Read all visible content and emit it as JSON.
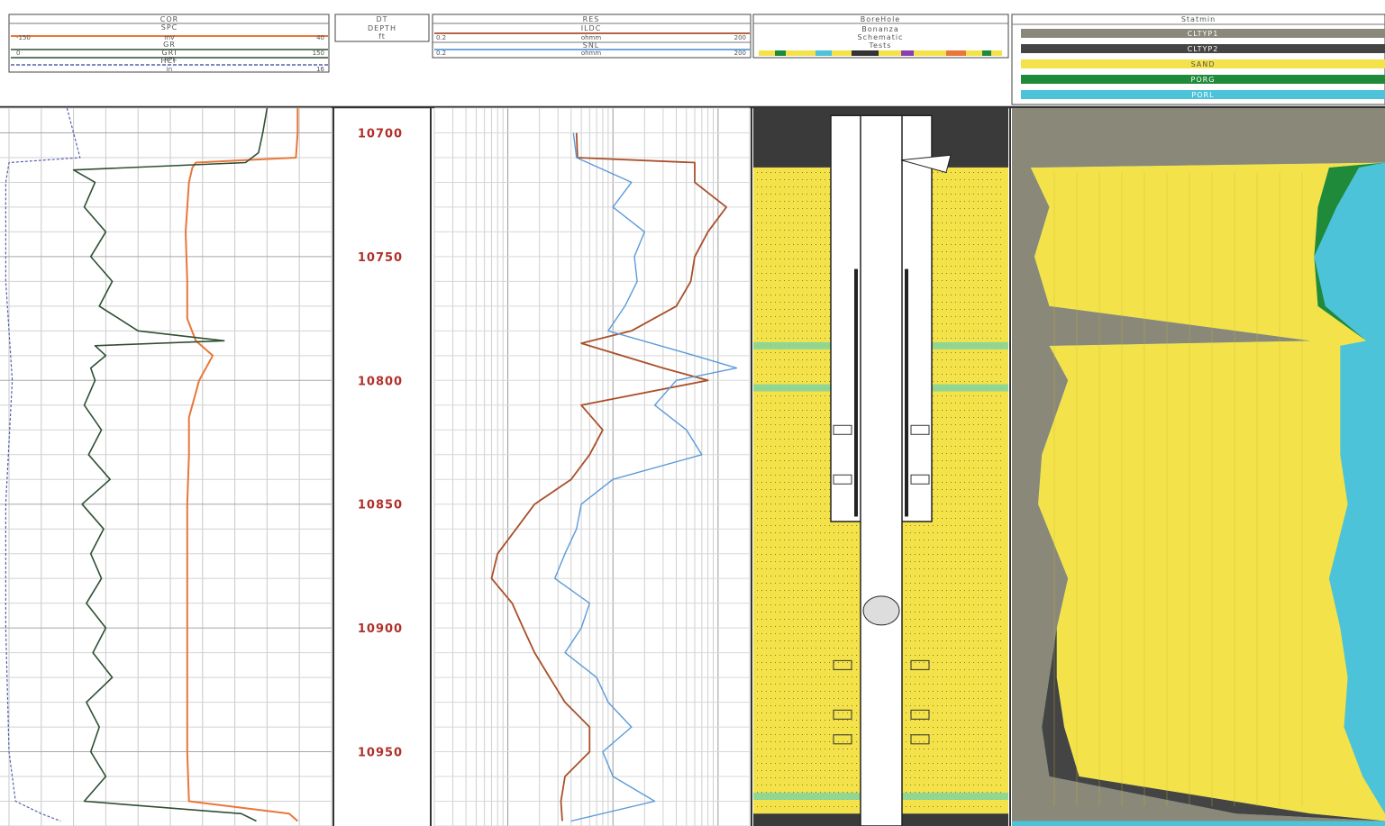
{
  "tracks": [
    {
      "title": "COR",
      "curves": [
        {
          "mnemonic": "SPC",
          "unit": "mV",
          "left": "-150",
          "right": "40",
          "color": "#e8773a"
        },
        {
          "mnemonic": "GR",
          "unit": "",
          "left": "",
          "right": "",
          "color": "#2f4f33"
        },
        {
          "mnemonic": "GRI",
          "unit": "API",
          "left": "0",
          "right": "150",
          "color": "#2f4f33"
        },
        {
          "mnemonic": "HCF",
          "unit": "in",
          "left": "",
          "right": "16",
          "color": "#5560b0"
        }
      ]
    },
    {
      "title": "DT",
      "subtitle": "DEPTH",
      "unit": "ft"
    },
    {
      "title": "RES",
      "curves": [
        {
          "mnemonic": "ILDC",
          "unit": "ohmm",
          "left": "0.2",
          "right": "200",
          "color": "#a9502a"
        },
        {
          "mnemonic": "SNL",
          "unit": "ohmm",
          "left": "0.2",
          "right": "200",
          "color": "#5b9bd8"
        }
      ]
    },
    {
      "title": "BoreHole",
      "lines": [
        "Bonanza",
        "Schematic",
        "Tests"
      ]
    },
    {
      "title": "Statmin",
      "lithology": [
        {
          "code": "CLTYP1",
          "color": "#8a8878"
        },
        {
          "code": "CLTYP2",
          "color": "#444444"
        },
        {
          "code": "SAND",
          "color": "#f4e24a"
        },
        {
          "code": "PORG",
          "color": "#1f8a3a"
        },
        {
          "code": "PORL",
          "color": "#4cc3d9"
        }
      ]
    }
  ],
  "chart_data": {
    "type": "line",
    "title": "",
    "ylabel": "DEPTH",
    "yunit": "ft",
    "ylim": [
      10690,
      10980
    ],
    "depth_ticks": [
      10700,
      10750,
      10800,
      10850,
      10900,
      10950
    ],
    "series": [
      {
        "name": "SPC",
        "xlim": [
          -150,
          40
        ],
        "depth": [
          10690,
          10700,
          10710,
          10712,
          10714,
          10720,
          10740,
          10760,
          10775,
          10784,
          10790,
          10800,
          10815,
          10830,
          10850,
          10900,
          10950,
          10970,
          10975,
          10978
        ],
        "values": [
          20,
          20,
          19,
          -40,
          -42,
          -44,
          -46,
          -45,
          -45,
          -40,
          -30,
          -38,
          -44,
          -44,
          -45,
          -45,
          -45,
          -44,
          15,
          20
        ]
      },
      {
        "name": "GRI",
        "xlim": [
          0,
          150
        ],
        "depth": [
          10690,
          10700,
          10708,
          10712,
          10715,
          10720,
          10730,
          10740,
          10750,
          10760,
          10770,
          10780,
          10784,
          10786,
          10790,
          10795,
          10800,
          10810,
          10820,
          10830,
          10840,
          10850,
          10860,
          10870,
          10880,
          10890,
          10900,
          10910,
          10920,
          10930,
          10940,
          10950,
          10960,
          10970,
          10975,
          10978
        ],
        "values": [
          120,
          118,
          116,
          110,
          30,
          40,
          35,
          45,
          38,
          48,
          42,
          60,
          100,
          40,
          45,
          38,
          40,
          35,
          43,
          37,
          47,
          34,
          44,
          38,
          43,
          36,
          45,
          39,
          48,
          36,
          42,
          38,
          45,
          35,
          108,
          115
        ]
      },
      {
        "name": "HCF",
        "xlim": [
          6,
          16
        ],
        "depth": [
          10690,
          10700,
          10710,
          10712,
          10720,
          10760,
          10800,
          10850,
          10900,
          10950,
          10970,
          10975,
          10978
        ],
        "values": [
          7.8,
          8.0,
          8.2,
          6.0,
          5.9,
          5.9,
          6.1,
          5.9,
          5.9,
          6.0,
          6.2,
          7.0,
          7.6
        ]
      },
      {
        "name": "ILDC",
        "xlim": [
          0.2,
          200
        ],
        "scale": "log",
        "depth": [
          10700,
          10710,
          10712,
          10720,
          10730,
          10740,
          10750,
          10760,
          10770,
          10780,
          10785,
          10795,
          10800,
          10810,
          10820,
          10830,
          10840,
          10850,
          10860,
          10870,
          10880,
          10890,
          10900,
          10910,
          10920,
          10930,
          10940,
          10950,
          10960,
          10970,
          10978
        ],
        "values": [
          4.5,
          4.6,
          60,
          60,
          120,
          80,
          60,
          55,
          40,
          15,
          5,
          30,
          80,
          5,
          8,
          6,
          4,
          1.8,
          1.2,
          0.8,
          0.7,
          1.1,
          1.4,
          1.8,
          2.5,
          3.5,
          6,
          6,
          3.5,
          3.2,
          3.3
        ]
      },
      {
        "name": "SNL",
        "xlim": [
          0.2,
          200
        ],
        "scale": "log",
        "depth": [
          10700,
          10710,
          10720,
          10730,
          10740,
          10750,
          10760,
          10770,
          10780,
          10790,
          10795,
          10800,
          10810,
          10820,
          10830,
          10840,
          10850,
          10860,
          10870,
          10880,
          10890,
          10900,
          10910,
          10920,
          10930,
          10940,
          10950,
          10960,
          10970,
          10978
        ],
        "values": [
          4.2,
          4.5,
          15,
          10,
          20,
          16,
          17,
          13,
          9,
          60,
          150,
          40,
          25,
          50,
          70,
          10,
          5,
          4.5,
          3.5,
          2.8,
          6,
          5,
          3.5,
          7,
          9,
          15,
          8,
          10,
          25,
          4
        ]
      }
    ],
    "statmin_fractions": {
      "depth": [
        10690,
        10712,
        10714,
        10730,
        10750,
        10770,
        10784,
        10786,
        10800,
        10830,
        10850,
        10880,
        10900,
        10920,
        10940,
        10960,
        10975,
        10978
      ],
      "CLTYP1": [
        1.0,
        1.0,
        0.05,
        0.1,
        0.06,
        0.1,
        0.8,
        0.1,
        0.15,
        0.08,
        0.07,
        0.15,
        0.12,
        0.1,
        0.08,
        0.1,
        0.6,
        1.0
      ],
      "CLTYP2": [
        0.0,
        0.0,
        0.0,
        0.0,
        0.0,
        0.0,
        0.0,
        0.0,
        0.0,
        0.0,
        0.0,
        0.0,
        0.0,
        0.02,
        0.06,
        0.08,
        0.2,
        0.0
      ],
      "SAND": [
        0.0,
        0.0,
        0.8,
        0.72,
        0.75,
        0.72,
        0.15,
        0.78,
        0.73,
        0.8,
        0.83,
        0.7,
        0.76,
        0.78,
        0.75,
        0.76,
        0.2,
        0.0
      ],
      "PORG": [
        0.0,
        0.0,
        0.08,
        0.05,
        0.0,
        0.02,
        0.0,
        0.0,
        0.0,
        0.0,
        0.0,
        0.0,
        0.0,
        0.0,
        0.0,
        0.0,
        0.0,
        0.0
      ]
    }
  }
}
